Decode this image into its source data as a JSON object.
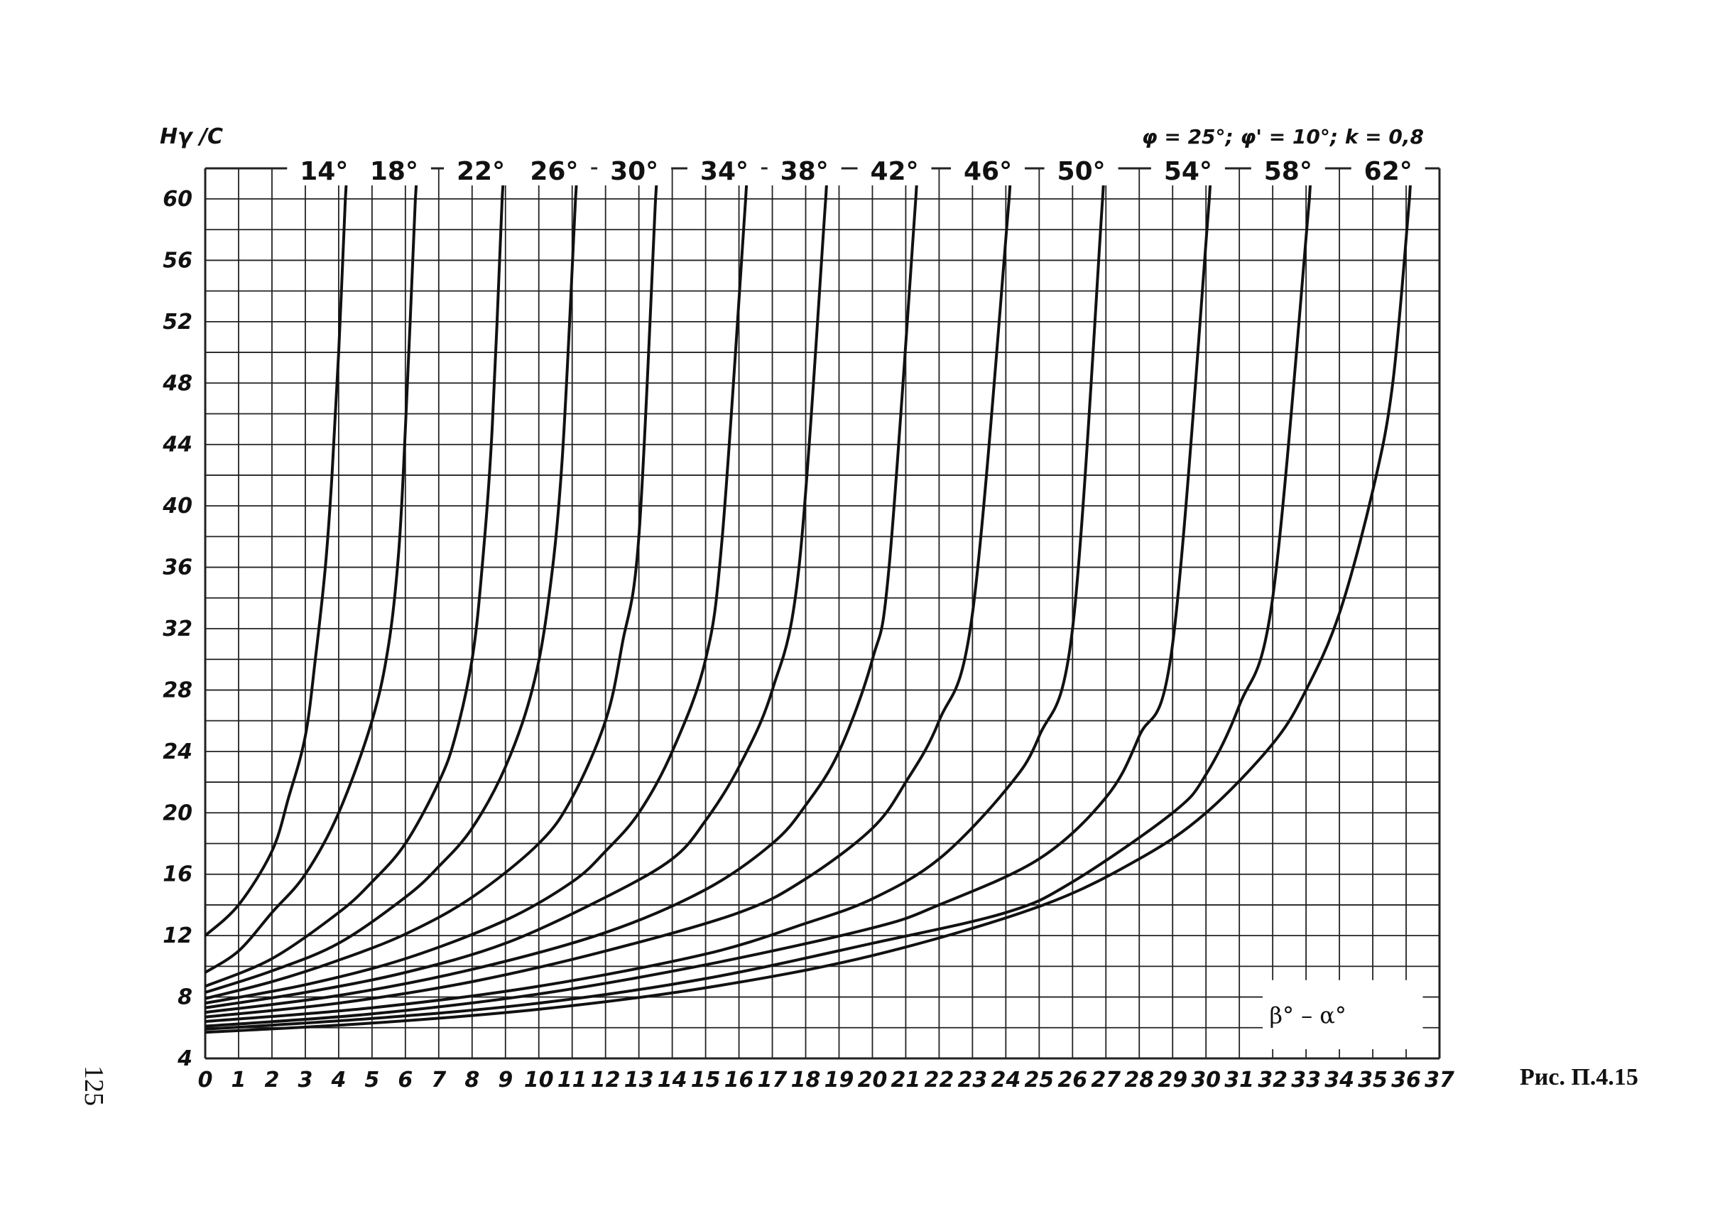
{
  "page": {
    "number": "125",
    "caption": "Рис. П.4.15"
  },
  "chart_data": {
    "type": "line",
    "title": "",
    "ylabel": "Hγ /C",
    "xlabel": "β° – α°",
    "params_label": "φ = 25°; φ' = 10°; k = 0,8",
    "xlim": [
      0,
      37
    ],
    "ylim": [
      4,
      60
    ],
    "x_ticks": [
      0,
      1,
      2,
      3,
      4,
      5,
      6,
      7,
      8,
      9,
      10,
      11,
      12,
      13,
      14,
      15,
      16,
      17,
      18,
      19,
      20,
      21,
      22,
      23,
      24,
      25,
      26,
      27,
      28,
      29,
      30,
      31,
      32,
      33,
      34,
      35,
      36,
      37
    ],
    "y_ticks": [
      4,
      8,
      12,
      16,
      20,
      24,
      28,
      32,
      36,
      40,
      44,
      48,
      52,
      56,
      60
    ],
    "grid": true,
    "series": [
      {
        "name": "14°",
        "x": [
          0,
          1,
          2,
          2.5,
          3,
          3.3,
          3.6,
          3.8,
          4,
          4.2
        ],
        "y": [
          12,
          14,
          17.5,
          21,
          25,
          30,
          36,
          42,
          50,
          60
        ]
      },
      {
        "name": "18°",
        "x": [
          0,
          1,
          2,
          3,
          4,
          5,
          5.5,
          5.8,
          6,
          6.3
        ],
        "y": [
          9.6,
          11,
          13.5,
          16,
          20,
          26,
          31,
          37,
          45,
          60
        ]
      },
      {
        "name": "22°",
        "x": [
          0,
          2,
          4,
          5,
          6,
          7,
          7.5,
          8,
          8.3,
          8.6,
          8.9
        ],
        "y": [
          8.7,
          10.5,
          13.5,
          15.5,
          18,
          22,
          25,
          30,
          36,
          45,
          60
        ]
      },
      {
        "name": "26°",
        "x": [
          0,
          2,
          4,
          6,
          7,
          8,
          9,
          9.8,
          10.3,
          10.7,
          11.1
        ],
        "y": [
          8.3,
          9.7,
          11.5,
          14.5,
          16.5,
          19,
          23,
          28,
          34,
          43,
          60
        ]
      },
      {
        "name": "30°",
        "x": [
          0,
          2,
          4,
          6,
          8,
          10,
          11,
          12,
          12.5,
          13,
          13.5
        ],
        "y": [
          7.9,
          9,
          10.4,
          12.1,
          14.5,
          18,
          21,
          26,
          31,
          38,
          60
        ]
      },
      {
        "name": "34°",
        "x": [
          0,
          3,
          6,
          9,
          11,
          12,
          13,
          14,
          15,
          15.5,
          16.2
        ],
        "y": [
          7.6,
          8.8,
          10.5,
          13,
          15.5,
          17.5,
          20,
          24,
          30,
          38,
          60
        ]
      },
      {
        "name": "38°",
        "x": [
          0,
          3,
          6,
          9,
          12,
          14,
          15,
          16,
          17,
          17.8,
          18.6
        ],
        "y": [
          7.3,
          8.3,
          9.6,
          11.5,
          14.5,
          17,
          19.5,
          23,
          28,
          36,
          60
        ]
      },
      {
        "name": "42°",
        "x": [
          0,
          4,
          8,
          12,
          15,
          17,
          18,
          19,
          20,
          20.5,
          21.3
        ],
        "y": [
          7,
          8.1,
          9.8,
          12.2,
          15,
          18,
          20.5,
          24,
          30,
          36,
          60
        ]
      },
      {
        "name": "46°",
        "x": [
          0,
          4,
          8,
          12,
          16,
          18,
          20,
          21,
          22,
          23,
          24.1
        ],
        "y": [
          6.7,
          7.6,
          9,
          11,
          13.5,
          15.7,
          19,
          22,
          26,
          33,
          60
        ]
      },
      {
        "name": "50°",
        "x": [
          0,
          5,
          10,
          15,
          18,
          20,
          22,
          24,
          25,
          26,
          26.9
        ],
        "y": [
          6.4,
          7.3,
          8.7,
          10.8,
          12.8,
          14.4,
          17,
          21.5,
          25,
          32,
          60
        ]
      },
      {
        "name": "54°",
        "x": [
          0,
          5,
          10,
          15,
          20,
          22,
          25,
          27,
          28,
          29,
          30.1
        ],
        "y": [
          6.1,
          6.9,
          8.2,
          10.1,
          12.5,
          14,
          17,
          21,
          25,
          31,
          60
        ]
      },
      {
        "name": "58°",
        "x": [
          0,
          5,
          10,
          15,
          20,
          24,
          26,
          29,
          30,
          31,
          32,
          33.1
        ],
        "y": [
          5.9,
          6.6,
          7.6,
          9.2,
          11.5,
          13.5,
          15.5,
          20,
          22.5,
          27,
          34,
          60
        ]
      },
      {
        "name": "62°",
        "x": [
          0,
          5,
          10,
          15,
          20,
          25,
          28,
          30,
          32,
          33,
          34,
          35,
          35.6,
          36.1
        ],
        "y": [
          5.7,
          6.3,
          7.2,
          8.6,
          10.7,
          13.9,
          17,
          20,
          24.5,
          28,
          33,
          41,
          48,
          60
        ]
      }
    ]
  }
}
